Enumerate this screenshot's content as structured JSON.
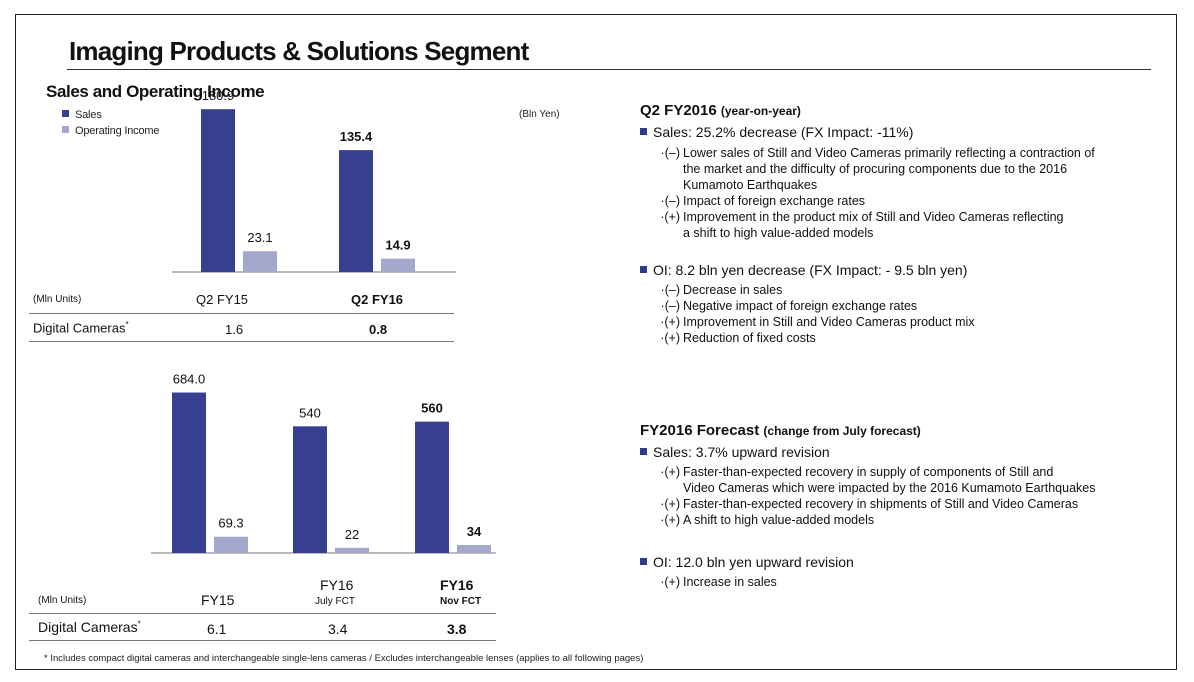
{
  "page": {
    "title": "Imaging Products & Solutions Segment",
    "subtitle": "Sales and Operating Income",
    "unit_label": "(Bln Yen)",
    "footnote": "* Includes compact digital cameras and interchangeable single-lens cameras / Excludes interchangeable lenses (applies to all following pages)"
  },
  "legend": [
    {
      "label": "Sales",
      "color": "#37408f"
    },
    {
      "label": "Operating Income",
      "color": "#a3a8cc"
    }
  ],
  "colors": {
    "sales": "#37408f",
    "oi": "#a3a8cc",
    "bullet": "#2e3a8c"
  },
  "chart_data": [
    {
      "type": "bar",
      "categories": [
        "Q2 FY15",
        "Q2 FY16"
      ],
      "series": [
        {
          "name": "Sales",
          "values": [
            180.9,
            135.4
          ]
        },
        {
          "name": "Operating Income",
          "values": [
            23.1,
            14.9
          ]
        }
      ],
      "value_labels": {
        "sales": [
          "180.9",
          "135.4"
        ],
        "oi": [
          "23.1",
          "14.9"
        ]
      },
      "bold": [
        false,
        true
      ],
      "ylim": [
        0,
        200
      ]
    },
    {
      "type": "bar",
      "categories": [
        "FY15",
        "FY16 July FCT",
        "FY16 Nov FCT"
      ],
      "series": [
        {
          "name": "Sales",
          "values": [
            684.0,
            540,
            560
          ]
        },
        {
          "name": "Operating Income",
          "values": [
            69.3,
            22,
            34
          ]
        }
      ],
      "value_labels": {
        "sales": [
          "684.0",
          "540",
          "560"
        ],
        "oi": [
          "69.3",
          "22",
          "34"
        ]
      },
      "bold": [
        false,
        false,
        true
      ],
      "ylim": [
        0,
        780
      ]
    }
  ],
  "table1": {
    "unit": "(Mln Units)",
    "headers": [
      "Q2 FY15",
      "Q2 FY16"
    ],
    "row_label": "Digital Cameras",
    "row_mark": "*",
    "values": [
      "1.6",
      "0.8"
    ]
  },
  "table2": {
    "unit": "(Mln Units)",
    "headers": [
      {
        "top": "",
        "main": "FY15",
        "sub": ""
      },
      {
        "top": "FY16",
        "main": "",
        "sub": "July FCT"
      },
      {
        "top": "FY16",
        "main": "",
        "sub": "Nov FCT"
      }
    ],
    "row_label": "Digital Cameras",
    "row_mark": "*",
    "values": [
      "6.1",
      "3.4",
      "3.8"
    ]
  },
  "q2": {
    "heading": "Q2 FY2016",
    "heading_sub": "(year-on-year)",
    "sales_bullet": "Sales: 25.2% decrease (FX Impact:  -11%)",
    "sales_items": [
      {
        "mark": "·(–)",
        "lines": [
          "Lower sales of Still and Video Cameras primarily reflecting a contraction of",
          "the market and the difficulty of procuring components due to the 2016",
          "Kumamoto Earthquakes"
        ]
      },
      {
        "mark": "·(–)",
        "lines": [
          "Impact of foreign exchange rates"
        ]
      },
      {
        "mark": "·(+)",
        "lines": [
          "Improvement in the product mix of Still and Video Cameras reflecting",
          "a shift to high value-added models"
        ]
      }
    ],
    "oi_bullet": "OI: 8.2 bln yen decrease (FX Impact: - 9.5 bln yen)",
    "oi_items": [
      {
        "mark": "·(–)",
        "lines": [
          "Decrease in sales"
        ]
      },
      {
        "mark": "·(–)",
        "lines": [
          "Negative impact of foreign exchange rates"
        ]
      },
      {
        "mark": "·(+)",
        "lines": [
          "Improvement in Still and Video Cameras product mix"
        ]
      },
      {
        "mark": "·(+)",
        "lines": [
          "Reduction of fixed costs"
        ]
      }
    ]
  },
  "fy": {
    "heading": "FY2016 Forecast",
    "heading_sub": "(change from July forecast)",
    "sales_bullet": "Sales: 3.7% upward revision",
    "sales_items": [
      {
        "mark": "·(+)",
        "lines": [
          "Faster-than-expected recovery in supply of components of Still and",
          "Video Cameras which were impacted by the 2016 Kumamoto Earthquakes"
        ]
      },
      {
        "mark": "·(+)",
        "lines": [
          "Faster-than-expected recovery in shipments of Still and Video Cameras"
        ]
      },
      {
        "mark": "·(+)",
        "lines": [
          "A shift to high value-added models"
        ]
      }
    ],
    "oi_bullet": "OI: 12.0 bln yen upward revision",
    "oi_items": [
      {
        "mark": "·(+)",
        "lines": [
          "Increase in sales"
        ]
      }
    ]
  }
}
